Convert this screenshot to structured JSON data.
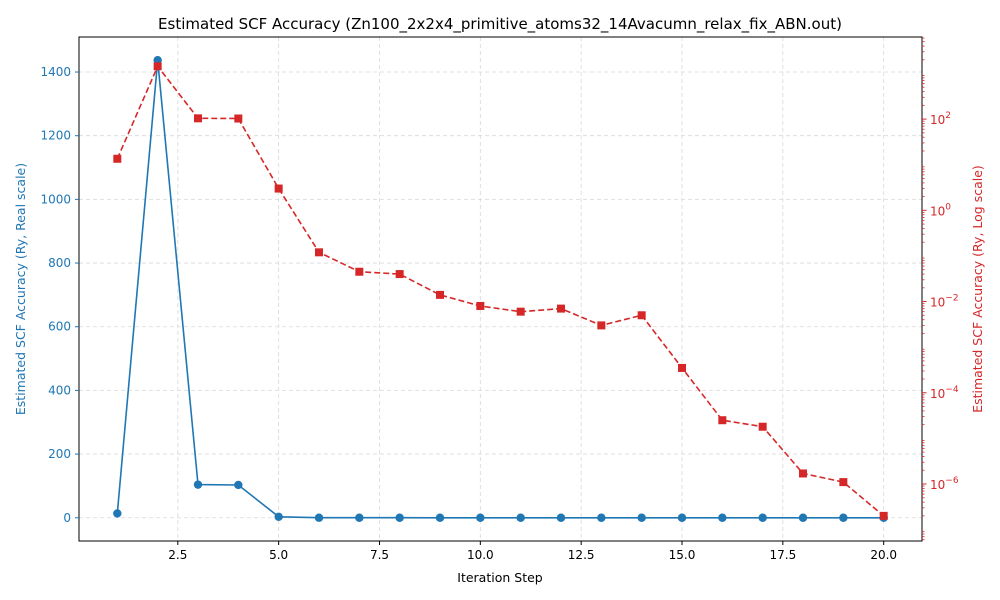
{
  "chart_data": {
    "type": "line",
    "title": "Estimated SCF Accuracy (Zn100_2x2x4_primitive_atoms32_14Avacumn_relax_fix_ABN.out)",
    "xlabel": "Iteration Step",
    "ylabel_left": "Estimated SCF Accuracy (Ry, Real scale)",
    "ylabel_right": "Estimated SCF Accuracy (Ry, Log scale)",
    "xlim": [
      0.05,
      20.95
    ],
    "ylim_left": [
      -73,
      1510
    ],
    "ylim_right_log10": [
      -7.25,
      3.8
    ],
    "x_ticks": [
      2.5,
      5.0,
      7.5,
      10.0,
      12.5,
      15.0,
      17.5,
      20.0
    ],
    "x_tick_labels": [
      "2.5",
      "5.0",
      "7.5",
      "10.0",
      "12.5",
      "15.0",
      "17.5",
      "20.0"
    ],
    "y_left_ticks": [
      0,
      200,
      400,
      600,
      800,
      1000,
      1200,
      1400
    ],
    "y_left_tick_labels": [
      "0",
      "200",
      "400",
      "600",
      "800",
      "1000",
      "1200",
      "1400"
    ],
    "y_right_ticks_exp": [
      -6,
      -4,
      -2,
      0,
      2
    ],
    "y_right_tick_base": "10",
    "y_right_tick_exps": [
      "−6",
      "−4",
      "−2",
      "0",
      "2"
    ],
    "grid": true,
    "colors": {
      "left": "#1f77b4",
      "right": "#d62728",
      "grid": "#d9d9d9",
      "axis": "#000000"
    },
    "series": [
      {
        "axis": "left",
        "style": "solid",
        "marker": "circle",
        "x": [
          1,
          2,
          3,
          4,
          5,
          6,
          7,
          8,
          9,
          10,
          11,
          12,
          13,
          14,
          15,
          16,
          17,
          18,
          19,
          20
        ],
        "values": [
          13.5,
          1437,
          104,
          103,
          3.0,
          0.12,
          0.045,
          0.04,
          0.014,
          0.008,
          0.006,
          0.007,
          0.003,
          0.005,
          0.00035,
          2.5e-05,
          1.8e-05,
          1.7e-06,
          1.1e-06,
          2e-07
        ]
      },
      {
        "axis": "right",
        "style": "dashed",
        "marker": "square",
        "x": [
          1,
          2,
          3,
          4,
          5,
          6,
          7,
          8,
          9,
          10,
          11,
          12,
          13,
          14,
          15,
          16,
          17,
          18,
          19,
          20
        ],
        "values": [
          13.5,
          1437,
          104,
          103,
          3.0,
          0.12,
          0.045,
          0.04,
          0.014,
          0.008,
          0.006,
          0.007,
          0.003,
          0.005,
          0.00035,
          2.5e-05,
          1.8e-05,
          1.7e-06,
          1.1e-06,
          2e-07
        ]
      }
    ]
  }
}
